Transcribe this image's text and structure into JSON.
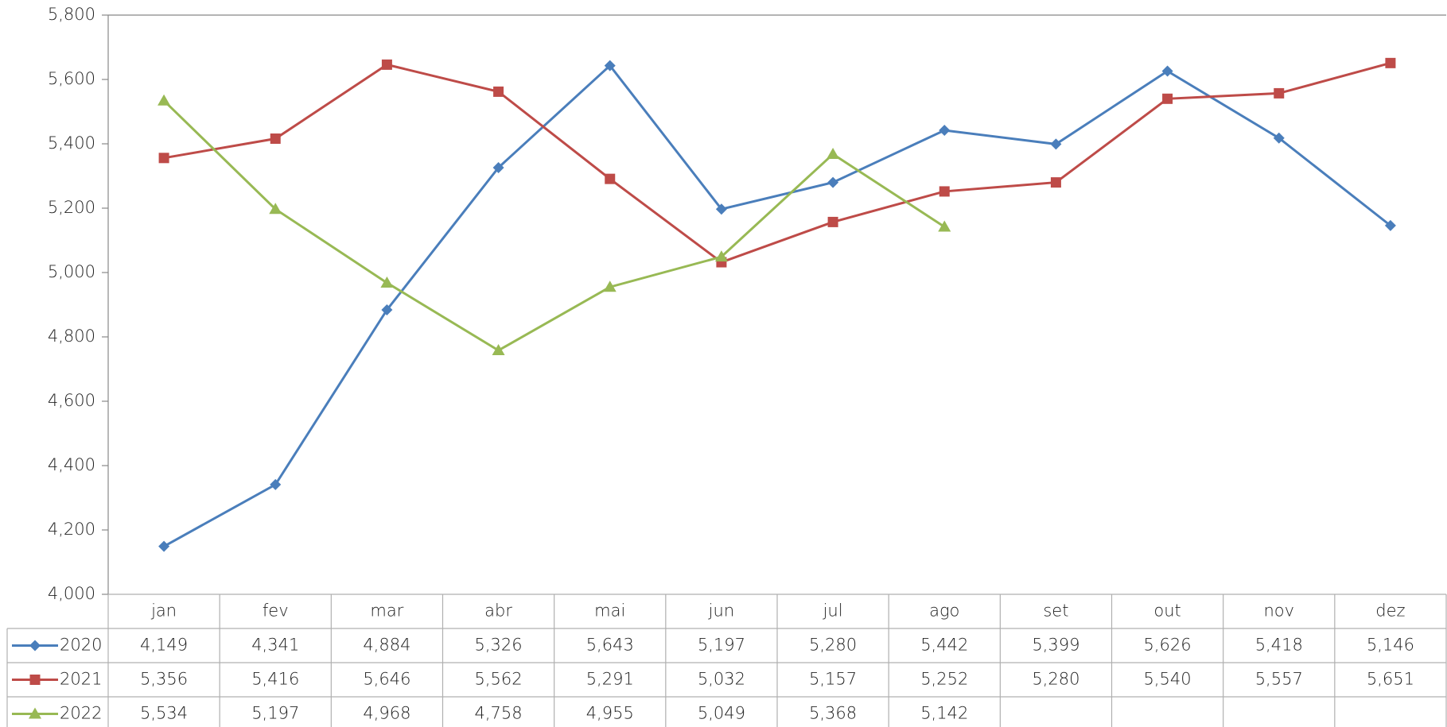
{
  "chart_data": {
    "type": "line",
    "categories": [
      "jan",
      "fev",
      "mar",
      "abr",
      "mai",
      "jun",
      "jul",
      "ago",
      "set",
      "out",
      "nov",
      "dez"
    ],
    "series": [
      {
        "name": "2020",
        "color": "#4a7ebb",
        "marker": "diamond",
        "values": [
          4149,
          4341,
          4884,
          5326,
          5643,
          5197,
          5280,
          5442,
          5399,
          5626,
          5418,
          5146
        ],
        "value_labels": [
          "4,149",
          "4,341",
          "4,884",
          "5,326",
          "5,643",
          "5,197",
          "5,280",
          "5,442",
          "5,399",
          "5,626",
          "5,418",
          "5,146"
        ]
      },
      {
        "name": "2021",
        "color": "#be4b48",
        "marker": "square",
        "values": [
          5356,
          5416,
          5646,
          5562,
          5291,
          5032,
          5157,
          5252,
          5280,
          5540,
          5557,
          5651
        ],
        "value_labels": [
          "5,356",
          "5,416",
          "5,646",
          "5,562",
          "5,291",
          "5,032",
          "5,157",
          "5,252",
          "5,280",
          "5,540",
          "5,557",
          "5,651"
        ]
      },
      {
        "name": "2022",
        "color": "#98b954",
        "marker": "triangle",
        "values": [
          5534,
          5197,
          4968,
          4758,
          4955,
          5049,
          5368,
          5142,
          null,
          null,
          null,
          null
        ],
        "value_labels": [
          "5,534",
          "5,197",
          "4,968",
          "4,758",
          "4,955",
          "5,049",
          "5,368",
          "5,142",
          null,
          null,
          null,
          null
        ]
      }
    ],
    "ylim": [
      4000,
      5800
    ],
    "yticks": [
      {
        "value": 4000,
        "label": "4,000"
      },
      {
        "value": 4200,
        "label": "4,200"
      },
      {
        "value": 4400,
        "label": "4,400"
      },
      {
        "value": 4600,
        "label": "4,600"
      },
      {
        "value": 4800,
        "label": "4,800"
      },
      {
        "value": 5000,
        "label": "5,000"
      },
      {
        "value": 5200,
        "label": "5,200"
      },
      {
        "value": 5400,
        "label": "5,400"
      },
      {
        "value": 5600,
        "label": "5,600"
      },
      {
        "value": 5800,
        "label": "5,800"
      }
    ],
    "grid": false
  }
}
